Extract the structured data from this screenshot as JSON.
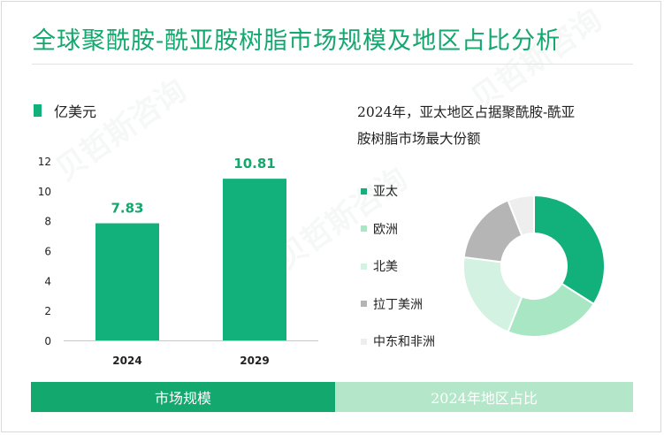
{
  "title": "全球聚酰胺-酰亚胺树脂市场规模及地区占比分析",
  "watermark": "贝哲斯咨询",
  "bar_panel": {
    "unit_label": "亿美元",
    "footer_label": "市场规模"
  },
  "pie_panel": {
    "title_line1": "2024年，亚太地区占据聚酰胺-酰亚",
    "title_line2": "胺树脂市场最大份额",
    "footer_label": "2024年地区占比"
  },
  "colors": {
    "accent": "#12a86e",
    "bar": "#12b07a",
    "footer_right": "#b4e6c9"
  },
  "chart_data": [
    {
      "type": "bar",
      "categories": [
        "2024",
        "2029"
      ],
      "values": [
        7.83,
        10.81
      ],
      "value_labels": [
        "7.83",
        "10.81"
      ],
      "ylabel": "亿美元",
      "ylim": [
        0,
        12
      ],
      "yticks": [
        0,
        2,
        4,
        6,
        8,
        10,
        12
      ],
      "grid": false
    },
    {
      "type": "pie",
      "style": "donut",
      "legend_position": "left",
      "labels": [
        "亚太",
        "欧洲",
        "北美",
        "拉丁美洲",
        "中东和非洲"
      ],
      "values": [
        34,
        22,
        21,
        17,
        6
      ],
      "colors": [
        "#12b07a",
        "#a8e6c4",
        "#d3f2e1",
        "#b5b5b5",
        "#eeeeee"
      ]
    }
  ]
}
